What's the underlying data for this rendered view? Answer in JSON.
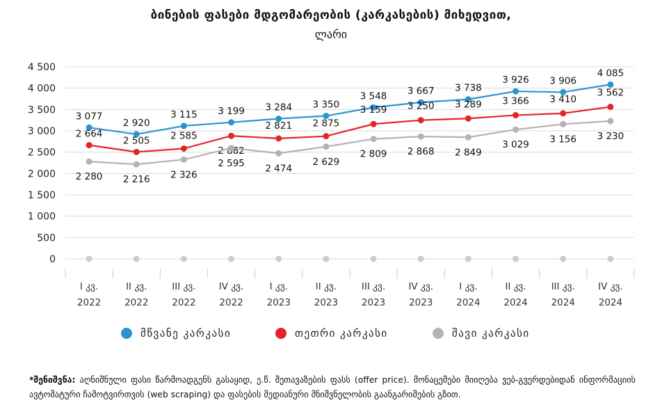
{
  "header": {
    "title_line1": "ბინების ფასები მდგომარეობის (კარკასების) მიხედვით,",
    "title_line2": "ლარი"
  },
  "legend": [
    {
      "label": "მწვანე კარკასი",
      "color": "#2a93cf"
    },
    {
      "label": "თეთრი კარკასი",
      "color": "#e3242b"
    },
    {
      "label": "შავი კარკასი",
      "color": "#b3b3b3"
    }
  ],
  "note": {
    "bold": "*შენიშვნა:",
    "text": " აღნიშნული ფასი წარმოადგენს გასაყიდ, ე.წ. შეთავაზების ფასს (offer price). მონაცემები მიიღება ვებ-გვერდებიდან ინფორმაციის ავტომატური ჩამოტვირთვის (web scraping) და ფასების მედიანური მნიშვნელობის გაანგარიშების გზით."
  },
  "chart_data": {
    "type": "line",
    "categories": [
      [
        "I კვ.",
        "2022"
      ],
      [
        "II კვ.",
        "2022"
      ],
      [
        "III კვ.",
        "2022"
      ],
      [
        "IV კვ.",
        "2022"
      ],
      [
        "I კვ.",
        "2023"
      ],
      [
        "II კვ.",
        "2023"
      ],
      [
        "III კვ.",
        "2023"
      ],
      [
        "IV კვ.",
        "2023"
      ],
      [
        "I კვ.",
        "2024"
      ],
      [
        "II კვ.",
        "2024"
      ],
      [
        "III კვ.",
        "2024"
      ],
      [
        "IV კვ.",
        "2024"
      ]
    ],
    "yticks": [
      "0",
      "500",
      "1 000",
      "1 500",
      "2 000",
      "2 500",
      "3 000",
      "3 500",
      "4 000",
      "4 500"
    ],
    "ylim": [
      0,
      4500
    ],
    "grid": true,
    "legend_position": "bottom",
    "series": [
      {
        "name": "მწვანე კარკასი",
        "color": "#2a93cf",
        "values": [
          3077,
          2920,
          3115,
          3199,
          3284,
          3350,
          3548,
          3667,
          3738,
          3926,
          3906,
          4085
        ],
        "labels": [
          "3 077",
          "2 920",
          "3 115",
          "3 199",
          "3 284",
          "3 350",
          "3 548",
          "3 667",
          "3 738",
          "3 926",
          "3 906",
          "4 085"
        ]
      },
      {
        "name": "თეთრი კარკასი",
        "color": "#e3242b",
        "values": [
          2664,
          2505,
          2585,
          2882,
          2821,
          2875,
          3159,
          3250,
          3289,
          3366,
          3410,
          3562
        ],
        "labels": [
          "2 664",
          "2 505",
          "2 585",
          "2 882",
          "2 821",
          "2 875",
          "3 159",
          "3 250",
          "3 289",
          "3 366",
          "3 410",
          "3 562"
        ]
      },
      {
        "name": "შავი კარკასი",
        "color": "#b3b3b3",
        "values": [
          2280,
          2216,
          2326,
          2595,
          2474,
          2629,
          2809,
          2868,
          2849,
          3029,
          3156,
          3230
        ],
        "labels": [
          "2 280",
          "2 216",
          "2 326",
          "2 595",
          "2 474",
          "2 629",
          "2 809",
          "2 868",
          "2 849",
          "3 029",
          "3 156",
          "3 230"
        ]
      },
      {
        "name": "",
        "color": "#cccccc",
        "values": [
          0,
          0,
          0,
          0,
          0,
          0,
          0,
          0,
          0,
          0,
          0,
          0
        ],
        "labels": []
      }
    ]
  }
}
